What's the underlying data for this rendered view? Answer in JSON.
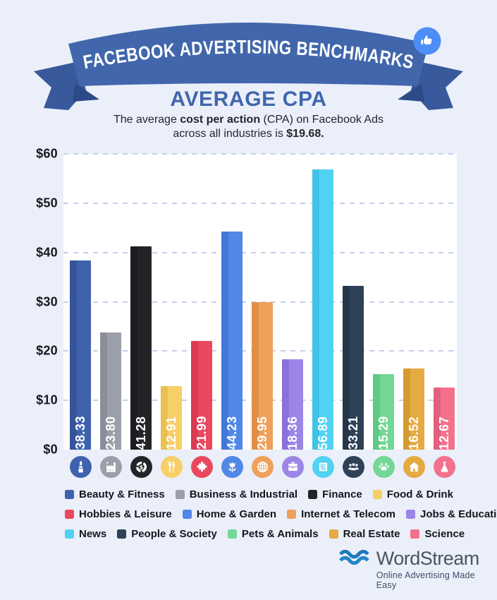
{
  "banner": {
    "title": "FACEBOOK ADVERTISING BENCHMARKS",
    "badge_icon": "thumbs-up-icon",
    "ribbon_color": "#4166ac",
    "tail_color": "#38599c",
    "fold_color": "#2b4a87",
    "badge_color": "#4d8df6"
  },
  "header": {
    "title": "AVERAGE CPA",
    "subtitle_prefix": "The average ",
    "subtitle_bold1": "cost per action",
    "subtitle_mid": " (CPA) on Facebook Ads",
    "subtitle_line2_prefix": "across all industries is ",
    "subtitle_bold2": "$19.68."
  },
  "chart_data": {
    "type": "bar",
    "title": "AVERAGE CPA",
    "categories": [
      "Beauty & Fitness",
      "Business & Industrial",
      "Finance",
      "Food & Drink",
      "Hobbies & Leisure",
      "Home & Garden",
      "Internet & Telecom",
      "Jobs & Education",
      "News",
      "People & Society",
      "Pets & Animals",
      "Real Estate",
      "Science"
    ],
    "values": [
      38.33,
      23.8,
      41.28,
      12.91,
      21.99,
      44.23,
      29.95,
      18.36,
      56.89,
      33.21,
      15.29,
      16.52,
      12.67
    ],
    "value_labels": [
      "38.33",
      "23.80",
      "41.28",
      "12.91",
      "21.99",
      "44.23",
      "29.95",
      "18.36",
      "56.89",
      "33.21",
      "15.29",
      "16.52",
      "12.67"
    ],
    "colors": [
      "#3f62ae",
      "#9b9fa9",
      "#222428",
      "#f6cf67",
      "#e9485f",
      "#5187e6",
      "#efa05a",
      "#9c85e6",
      "#52d2f2",
      "#2e4157",
      "#73d795",
      "#e5aa42",
      "#f4718e"
    ],
    "colors_dark": [
      "#36549a",
      "#8b8f9a",
      "#1a1c1f",
      "#ebbf52",
      "#d93b52",
      "#4377d8",
      "#e08f47",
      "#8b71db",
      "#3fc3e6",
      "#263649",
      "#61c983",
      "#d59b33",
      "#e2607d"
    ],
    "icons": [
      "lipstick-icon",
      "factory-icon",
      "finance-donut-icon",
      "utensils-icon",
      "puzzle-icon",
      "tulip-icon",
      "globe-icon",
      "briefcase-icon",
      "newspaper-icon",
      "people-icon",
      "paw-icon",
      "house-icon",
      "flask-icon"
    ],
    "ylim": [
      0,
      60
    ],
    "ytick_step": 10,
    "ytick_labels": [
      "$0",
      "$10",
      "$20",
      "$30",
      "$40",
      "$50",
      "$60"
    ],
    "grid": "dashed horizontal",
    "legend_position": "bottom",
    "bar_label_color": "#ffffff"
  },
  "legend": {
    "rows": [
      [
        0,
        1,
        2,
        3
      ],
      [
        4,
        5,
        6,
        7
      ],
      [
        8,
        9,
        10,
        11,
        12
      ]
    ]
  },
  "footer": {
    "brand": "WordStream",
    "tagline": "Online Advertising Made Easy",
    "logo_icon": "waves-icon",
    "logo_color": "#1d78bc"
  }
}
